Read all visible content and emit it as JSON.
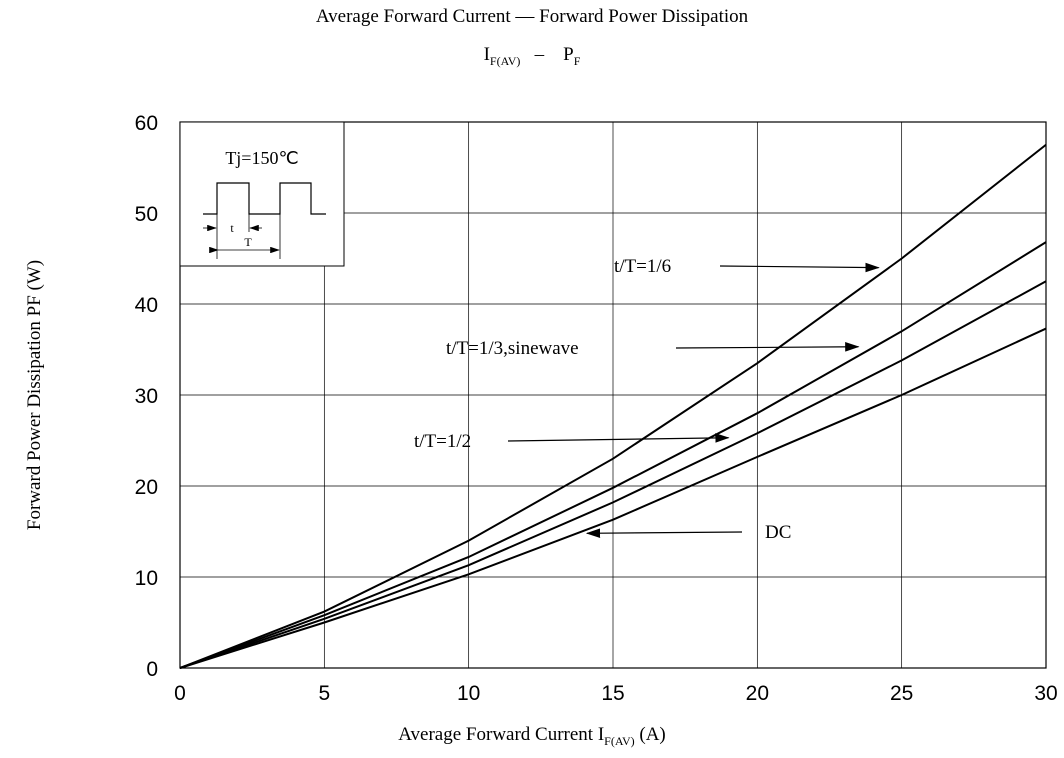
{
  "chart_data": {
    "type": "line",
    "title": "Average Forward Current — Forward Power Dissipation",
    "subtitle": {
      "main": "I",
      "sub": "F(AV)",
      "sep": "–",
      "main2": "P",
      "sub2": "F"
    },
    "xlabel": {
      "prefix": "Average Forward Current I",
      "sub": "F(AV)",
      "suffix": " (A)"
    },
    "ylabel": "Forward Power Dissipation PF (W)",
    "xlim": [
      0,
      30
    ],
    "ylim": [
      0,
      60
    ],
    "xticks": [
      "0",
      "5",
      "10",
      "15",
      "20",
      "25",
      "30"
    ],
    "yticks": [
      "0",
      "10",
      "20",
      "30",
      "40",
      "50",
      "60"
    ],
    "grid": true,
    "inset": {
      "label": "Tj=150℃",
      "t": "t",
      "T": "T"
    },
    "series": [
      {
        "name": "t/T=1/6",
        "x": [
          0,
          5,
          10,
          15,
          20,
          25,
          30
        ],
        "y": [
          0,
          6.2,
          14.0,
          23.0,
          33.5,
          45.0,
          57.5
        ]
      },
      {
        "name": "t/T=1/3,sinewave",
        "x": [
          0,
          5,
          10,
          15,
          20,
          25,
          30
        ],
        "y": [
          0,
          5.8,
          12.2,
          19.8,
          28.0,
          37.0,
          46.8
        ]
      },
      {
        "name": "t/T=1/2",
        "x": [
          0,
          5,
          10,
          15,
          20,
          25,
          30
        ],
        "y": [
          0,
          5.4,
          11.3,
          18.2,
          25.8,
          33.8,
          42.5
        ]
      },
      {
        "name": "DC",
        "x": [
          0,
          5,
          10,
          15,
          20,
          25,
          30
        ],
        "y": [
          0,
          5.0,
          10.3,
          16.3,
          23.2,
          30.0,
          37.3
        ]
      }
    ],
    "annotations": [
      {
        "text": "t/T=1/6",
        "target_x": 24.2,
        "target_y": 44
      },
      {
        "text": "t/T=1/3,sinewave",
        "target_x": 23.5,
        "target_y": 35.3
      },
      {
        "text": "t/T=1/2",
        "target_x": 19.0,
        "target_y": 25.3
      },
      {
        "text": "DC",
        "target_x": 14.1,
        "target_y": 14.8
      }
    ]
  }
}
